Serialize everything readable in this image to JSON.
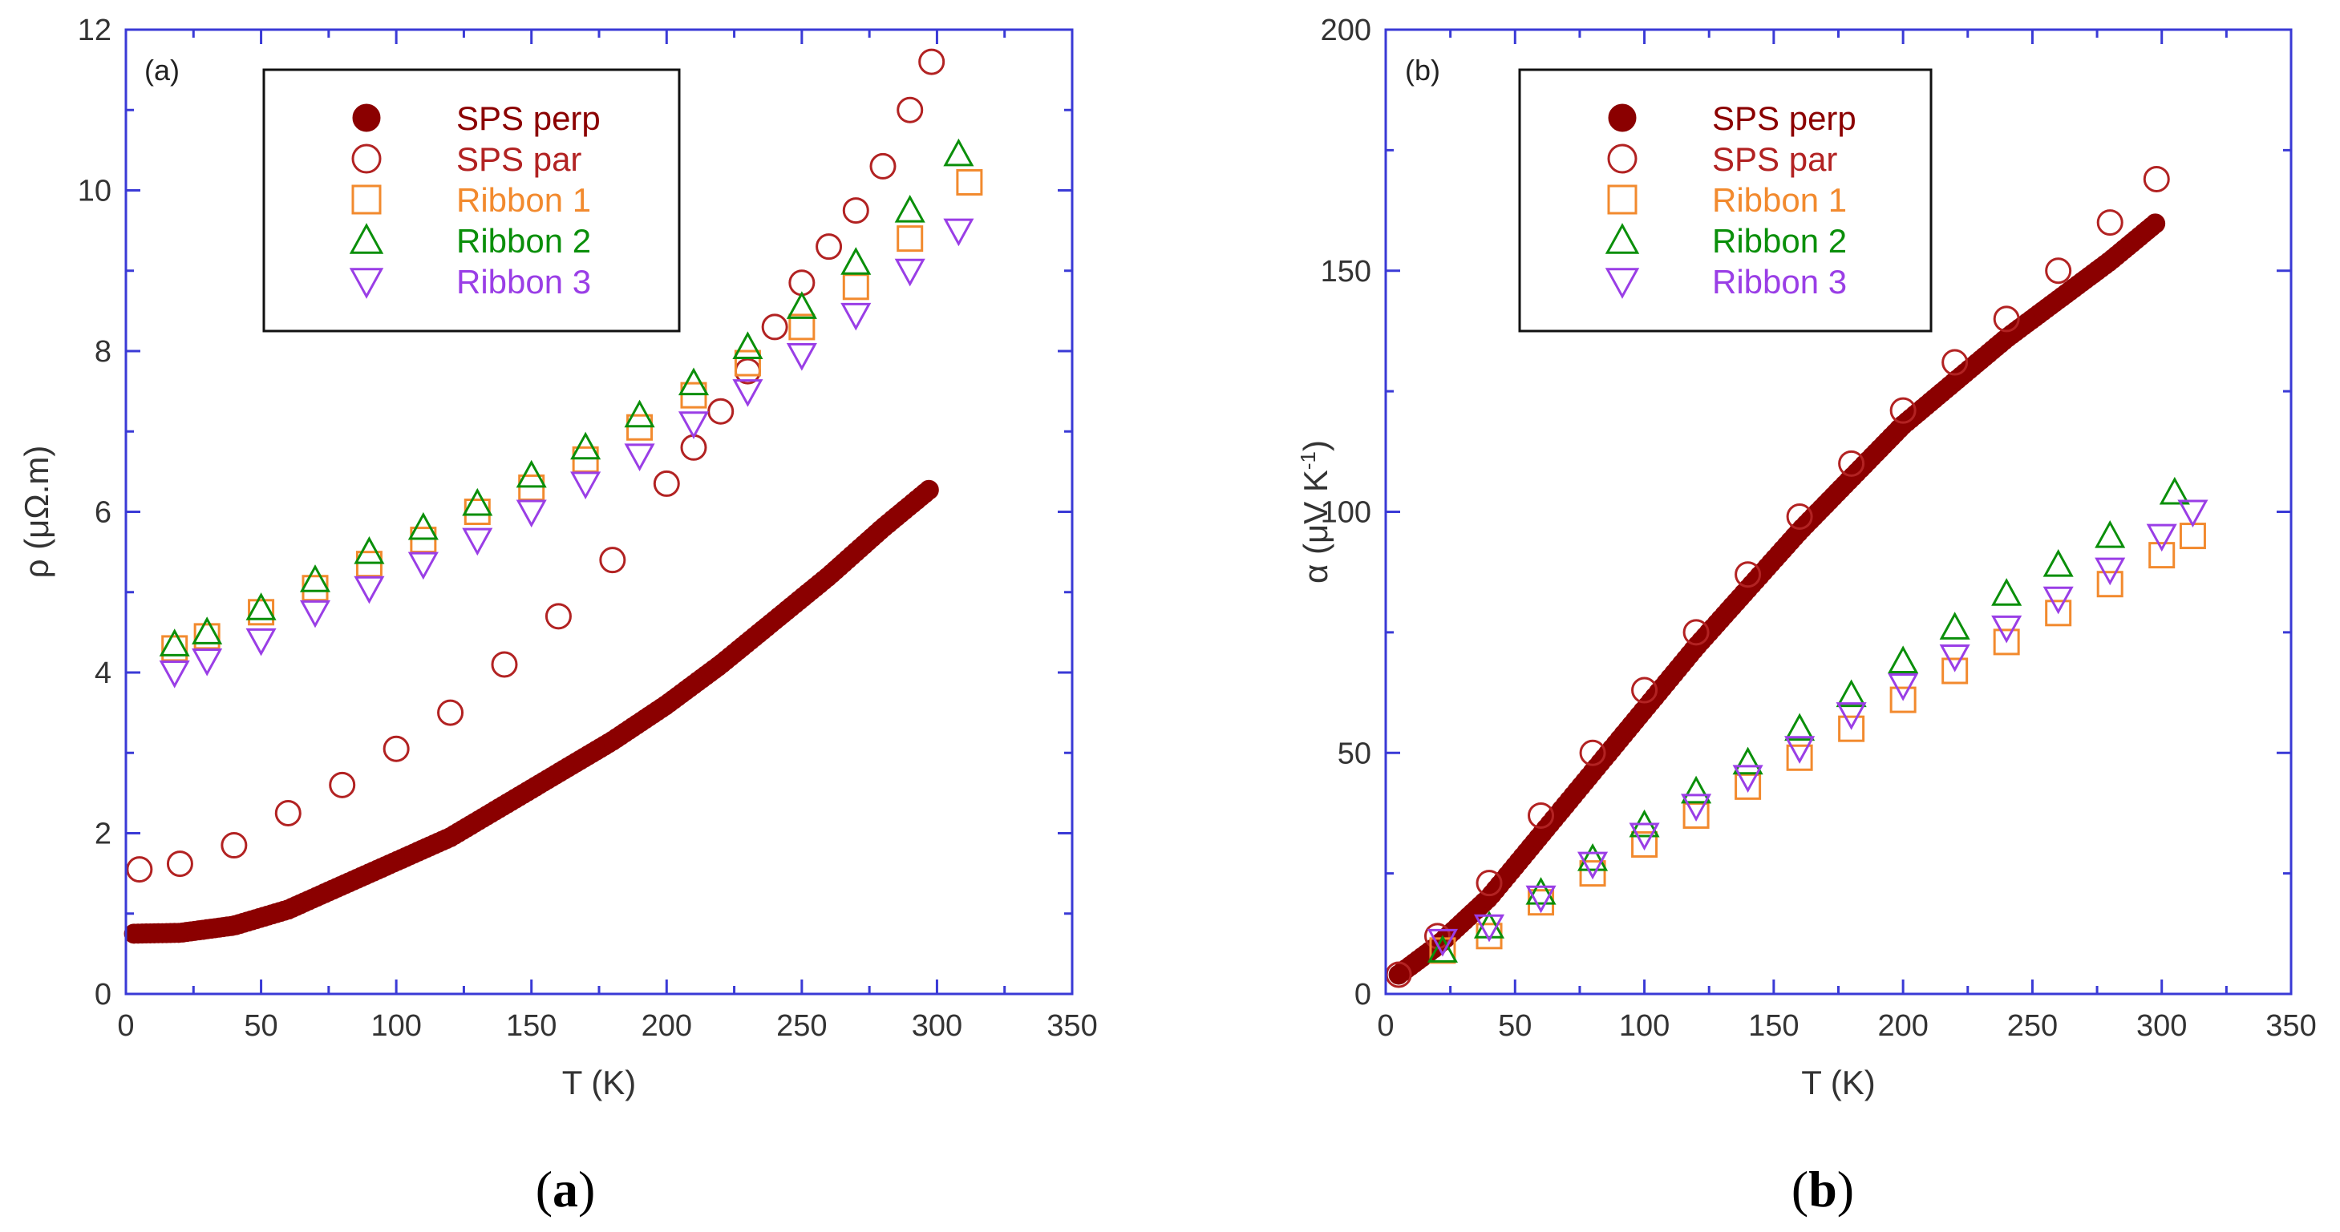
{
  "colors": {
    "axis": "#3a3ad6",
    "legend_border": "#111111",
    "SPS perp": "#8b0000",
    "SPS par": "#b22222",
    "Ribbon 1": "#f28a2e",
    "Ribbon 2": "#0a8f0a",
    "Ribbon 3": "#9a3ee6"
  },
  "chart_data": [
    {
      "type": "scatter",
      "panel_tag": "(a)",
      "caption": {
        "open": "(",
        "letter": "a",
        "close": ")"
      },
      "xlabel": "T (K)",
      "ylabel": "ρ (μΩ.m)",
      "xlim": [
        0,
        350
      ],
      "ylim": [
        0,
        12
      ],
      "xticks": [
        0,
        50,
        100,
        150,
        200,
        250,
        300,
        350
      ],
      "yticks": [
        0,
        2,
        4,
        6,
        8,
        10,
        12
      ],
      "legend_position": "top-center",
      "series": [
        {
          "name": "SPS perp",
          "marker": "filled-circle",
          "dense": true,
          "x": [
            3,
            20,
            40,
            60,
            80,
            100,
            120,
            140,
            160,
            180,
            200,
            220,
            240,
            260,
            280,
            298
          ],
          "y": [
            0.75,
            0.76,
            0.85,
            1.05,
            1.35,
            1.65,
            1.95,
            2.35,
            2.75,
            3.15,
            3.6,
            4.1,
            4.65,
            5.2,
            5.8,
            6.3
          ]
        },
        {
          "name": "SPS par",
          "marker": "open-circle",
          "dense": false,
          "x": [
            5,
            20,
            40,
            60,
            80,
            100,
            120,
            140,
            160,
            180,
            200,
            210,
            220,
            230,
            240,
            250,
            260,
            270,
            280,
            290,
            298
          ],
          "y": [
            1.55,
            1.62,
            1.85,
            2.25,
            2.6,
            3.05,
            3.5,
            4.1,
            4.7,
            5.4,
            6.35,
            6.8,
            7.25,
            7.75,
            8.3,
            8.85,
            9.3,
            9.75,
            10.3,
            11.0,
            11.6
          ]
        },
        {
          "name": "Ribbon 1",
          "marker": "open-square",
          "dense": false,
          "x": [
            18,
            30,
            50,
            70,
            90,
            110,
            130,
            150,
            170,
            190,
            210,
            230,
            250,
            270,
            290,
            312
          ],
          "y": [
            4.3,
            4.45,
            4.75,
            5.05,
            5.35,
            5.65,
            6.0,
            6.3,
            6.65,
            7.05,
            7.45,
            7.85,
            8.3,
            8.8,
            9.4,
            10.1
          ]
        },
        {
          "name": "Ribbon 2",
          "marker": "open-triangle-up",
          "dense": false,
          "x": [
            18,
            30,
            50,
            70,
            90,
            110,
            130,
            150,
            170,
            190,
            210,
            230,
            250,
            270,
            290,
            308
          ],
          "y": [
            4.35,
            4.5,
            4.8,
            5.15,
            5.5,
            5.8,
            6.1,
            6.45,
            6.8,
            7.2,
            7.6,
            8.05,
            8.55,
            9.1,
            9.75,
            10.45
          ]
        },
        {
          "name": "Ribbon 3",
          "marker": "open-triangle-down",
          "dense": false,
          "x": [
            18,
            30,
            50,
            70,
            90,
            110,
            130,
            150,
            170,
            190,
            210,
            230,
            250,
            270,
            290,
            308
          ],
          "y": [
            4.0,
            4.15,
            4.4,
            4.75,
            5.05,
            5.35,
            5.65,
            6.0,
            6.35,
            6.7,
            7.1,
            7.5,
            7.95,
            8.45,
            9.0,
            9.5
          ]
        }
      ]
    },
    {
      "type": "scatter",
      "panel_tag": "(b)",
      "caption": {
        "open": "(",
        "letter": "b",
        "close": ")"
      },
      "xlabel": "T (K)",
      "ylabel": "α (μV K",
      "ylabel_sup": "-1",
      "ylabel_end": ")",
      "xlim": [
        0,
        350
      ],
      "ylim": [
        0,
        200
      ],
      "xticks": [
        0,
        50,
        100,
        150,
        200,
        250,
        300,
        350
      ],
      "yticks": [
        0,
        50,
        100,
        150,
        200
      ],
      "legend_position": "top-center",
      "series": [
        {
          "name": "SPS perp",
          "marker": "filled-circle",
          "dense": true,
          "x": [
            5,
            20,
            40,
            60,
            80,
            100,
            120,
            140,
            160,
            180,
            200,
            220,
            240,
            260,
            280,
            298
          ],
          "y": [
            4,
            10,
            20,
            33,
            46,
            59,
            72,
            84,
            96,
            107,
            118,
            127,
            136,
            144,
            152,
            160
          ]
        },
        {
          "name": "SPS par",
          "marker": "open-circle",
          "dense": false,
          "x": [
            5,
            20,
            40,
            60,
            80,
            100,
            120,
            140,
            160,
            180,
            200,
            220,
            240,
            260,
            280,
            298
          ],
          "y": [
            4,
            12,
            23,
            37,
            50,
            63,
            75,
            87,
            99,
            110,
            121,
            131,
            140,
            150,
            160,
            169
          ]
        },
        {
          "name": "Ribbon 1",
          "marker": "open-square",
          "dense": false,
          "x": [
            22,
            40,
            60,
            80,
            100,
            120,
            140,
            160,
            180,
            200,
            220,
            240,
            260,
            280,
            300,
            312
          ],
          "y": [
            9,
            12,
            19,
            25,
            31,
            37,
            43,
            49,
            55,
            61,
            67,
            73,
            79,
            85,
            91,
            95
          ]
        },
        {
          "name": "Ribbon 2",
          "marker": "open-triangle-up",
          "dense": false,
          "x": [
            22,
            40,
            60,
            80,
            100,
            120,
            140,
            160,
            180,
            200,
            220,
            240,
            260,
            280,
            305
          ],
          "y": [
            9,
            14,
            21,
            28,
            35,
            42,
            48,
            55,
            62,
            69,
            76,
            83,
            89,
            95,
            104
          ]
        },
        {
          "name": "Ribbon 3",
          "marker": "open-triangle-down",
          "dense": false,
          "x": [
            22,
            40,
            60,
            80,
            100,
            120,
            140,
            160,
            180,
            200,
            220,
            240,
            260,
            280,
            300,
            312
          ],
          "y": [
            11,
            14,
            20,
            27,
            33,
            39,
            45,
            51,
            58,
            64,
            70,
            76,
            82,
            88,
            95,
            100
          ]
        }
      ]
    }
  ]
}
